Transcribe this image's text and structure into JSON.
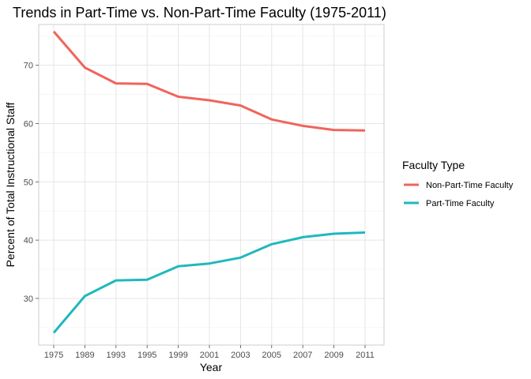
{
  "chart_data": {
    "type": "line",
    "title": "Trends in Part-Time vs. Non-Part-Time Faculty (1975-2011)",
    "xlabel": "Year",
    "ylabel": "Percent of Total Instructional Staff",
    "x": [
      "1975",
      "1989",
      "1993",
      "1995",
      "1999",
      "2001",
      "2003",
      "2005",
      "2007",
      "2009",
      "2011"
    ],
    "ylim": [
      22,
      77
    ],
    "yticks": [
      30,
      40,
      50,
      60,
      70
    ],
    "grid": true,
    "legend": {
      "title": "Faculty Type",
      "position": "right"
    },
    "series": [
      {
        "name": "Non-Part-Time Faculty",
        "color": "#F0645C",
        "values": [
          75.8,
          69.6,
          66.9,
          66.8,
          64.6,
          64.0,
          63.1,
          60.7,
          59.6,
          58.9,
          58.8
        ]
      },
      {
        "name": "Part-Time Faculty",
        "color": "#1FB8BE",
        "values": [
          24.1,
          30.4,
          33.1,
          33.2,
          35.5,
          36.0,
          37.0,
          39.3,
          40.5,
          41.1,
          41.3
        ]
      }
    ]
  }
}
